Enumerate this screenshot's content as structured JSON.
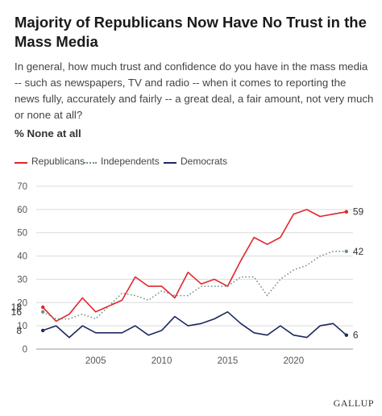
{
  "title": "Majority of Republicans Now Have No Trust in the Mass Media",
  "question": "In general, how much trust and confidence do you have in the mass media -- such as newspapers, TV and radio -- when it comes to reporting the news fully, accurately and fairly -- a great deal, a fair amount, not very much or none at all?",
  "measure": "% None at all",
  "brand": "GALLUP",
  "chart_data": {
    "type": "line",
    "title": "Majority of Republicans Now Have No Trust in the Mass Media",
    "xlabel": "",
    "ylabel": "",
    "xlim": [
      2000.5,
      2024.5
    ],
    "ylim": [
      0,
      70
    ],
    "y_ticks": [
      0,
      10,
      20,
      30,
      40,
      50,
      60,
      70
    ],
    "x_ticks": [
      2005,
      2010,
      2015,
      2020
    ],
    "grid": "horizontal",
    "legend_position": "top-left",
    "series": [
      {
        "name": "Republicans",
        "color": "#e0262b",
        "dash": "solid",
        "x": [
          2001,
          2002,
          2003,
          2004,
          2005,
          2007,
          2008,
          2009,
          2010,
          2011,
          2012,
          2013,
          2014,
          2015,
          2016,
          2017,
          2018,
          2019,
          2020,
          2021,
          2022,
          2023,
          2024
        ],
        "values": [
          18,
          12,
          15,
          22,
          16,
          21,
          31,
          27,
          27,
          22,
          33,
          28,
          30,
          27,
          38,
          48,
          45,
          48,
          58,
          60,
          57,
          58,
          59
        ],
        "start_label": "18",
        "end_label": "59"
      },
      {
        "name": "Independents",
        "color": "#6f8f86",
        "dash": "dotted",
        "x": [
          2001,
          2002,
          2003,
          2004,
          2005,
          2007,
          2008,
          2009,
          2010,
          2011,
          2012,
          2013,
          2014,
          2015,
          2016,
          2017,
          2018,
          2019,
          2020,
          2021,
          2022,
          2023,
          2024
        ],
        "values": [
          16,
          13,
          13,
          15,
          13,
          24,
          23,
          21,
          25,
          23,
          23,
          27,
          27,
          27,
          31,
          31,
          23,
          30,
          34,
          36,
          40,
          42,
          42
        ],
        "start_label": "16",
        "end_label": "42"
      },
      {
        "name": "Democrats",
        "color": "#1a2a5e",
        "dash": "solid",
        "x": [
          2001,
          2002,
          2003,
          2004,
          2005,
          2007,
          2008,
          2009,
          2010,
          2011,
          2012,
          2013,
          2014,
          2015,
          2016,
          2017,
          2018,
          2019,
          2020,
          2021,
          2022,
          2023,
          2024
        ],
        "values": [
          8,
          10,
          5,
          10,
          7,
          7,
          10,
          6,
          8,
          14,
          10,
          11,
          13,
          16,
          11,
          7,
          6,
          10,
          6,
          5,
          10,
          11,
          6
        ],
        "start_label": "8",
        "end_label": "6"
      }
    ]
  }
}
